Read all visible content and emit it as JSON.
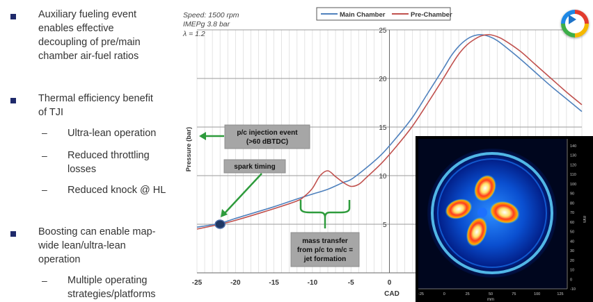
{
  "bullets": [
    {
      "type": "main",
      "text": [
        "Auxiliary fueling event",
        "enables effective",
        "decoupling of pre/main",
        "chamber air-fuel ratios"
      ]
    },
    {
      "type": "main",
      "text": [
        "Thermal efficiency benefit",
        "of TJI"
      ]
    },
    {
      "type": "sub",
      "text": [
        "Ultra-lean operation"
      ]
    },
    {
      "type": "sub",
      "text": [
        "Reduced throttling",
        "losses"
      ]
    },
    {
      "type": "sub",
      "text": [
        "Reduced knock @ HL"
      ]
    },
    {
      "type": "main",
      "text": [
        "Boosting can enable map-",
        "wide lean/ultra-lean",
        "operation"
      ]
    },
    {
      "type": "sub",
      "text": [
        "Multiple operating",
        "strategies/platforms"
      ]
    }
  ],
  "sub_marker": "–",
  "chart_data": {
    "type": "line",
    "conditions": [
      "Speed: 1500 rpm",
      "IMEPg 3.8 bar",
      "λ = 1.2"
    ],
    "xlabel": "CAD",
    "ylabel": "Pressure (bar)",
    "xlim": [
      -25,
      25
    ],
    "ylim": [
      0,
      25
    ],
    "xticks": [
      -25,
      -20,
      -15,
      -10,
      -5,
      0
    ],
    "yticks": [
      5,
      10,
      15,
      20,
      25
    ],
    "legend": {
      "position": "top-center",
      "entries": [
        "Main Chamber",
        "Pre-Chamber"
      ]
    },
    "series": [
      {
        "name": "Main Chamber",
        "color": "#4f81bd",
        "x": [
          -25,
          -22,
          -20,
          -15,
          -12,
          -10,
          -8,
          -6,
          -5,
          -3,
          -1,
          1,
          3,
          5,
          7,
          8,
          9,
          10,
          11,
          12,
          13,
          14,
          15,
          17,
          19,
          21,
          23,
          25
        ],
        "y": [
          4.7,
          5.1,
          5.6,
          6.8,
          7.6,
          8.1,
          8.6,
          9.3,
          9.6,
          10.8,
          12.2,
          14.0,
          16.0,
          18.5,
          21.0,
          22.3,
          23.3,
          24.0,
          24.4,
          24.5,
          24.3,
          23.9,
          23.3,
          22.0,
          20.6,
          19.2,
          17.9,
          16.6
        ]
      },
      {
        "name": "Pre-Chamber",
        "color": "#c0504d",
        "x": [
          -25,
          -22,
          -20,
          -15,
          -12,
          -11,
          -10,
          -9,
          -8,
          -7,
          -6,
          -5,
          -4,
          -3,
          -1,
          1,
          3,
          5,
          7,
          8,
          9,
          10,
          11,
          12,
          13,
          14,
          15,
          17,
          19,
          21,
          23,
          25
        ],
        "y": [
          4.5,
          5.0,
          5.4,
          6.6,
          7.4,
          7.9,
          8.7,
          10.0,
          10.5,
          9.9,
          9.3,
          8.9,
          9.1,
          9.8,
          11.3,
          13.1,
          15.1,
          17.5,
          20.0,
          21.3,
          22.5,
          23.4,
          24.0,
          24.4,
          24.5,
          24.3,
          23.9,
          22.8,
          21.4,
          20.0,
          18.6,
          17.3
        ]
      }
    ],
    "annotations": [
      {
        "text": [
          "p/c injection  event",
          "(>60 dBTDC)"
        ]
      },
      {
        "text": [
          "spark timing"
        ]
      },
      {
        "text": [
          "mass transfer",
          "from p/c to m/c =",
          "jet formation"
        ]
      }
    ],
    "spark_cad": -22,
    "spark_pressure": 5.0
  },
  "heatmap": {
    "right_ticks": [
      "140",
      "130",
      "120",
      "110",
      "100",
      "90",
      "80",
      "70",
      "60",
      "50",
      "40",
      "30",
      "20",
      "10",
      "0",
      "-10"
    ],
    "bottom_ticks": [
      "-25",
      "0",
      "25",
      "50",
      "75",
      "100",
      "125"
    ],
    "right_unit": "mm",
    "bottom_unit": "mm"
  }
}
